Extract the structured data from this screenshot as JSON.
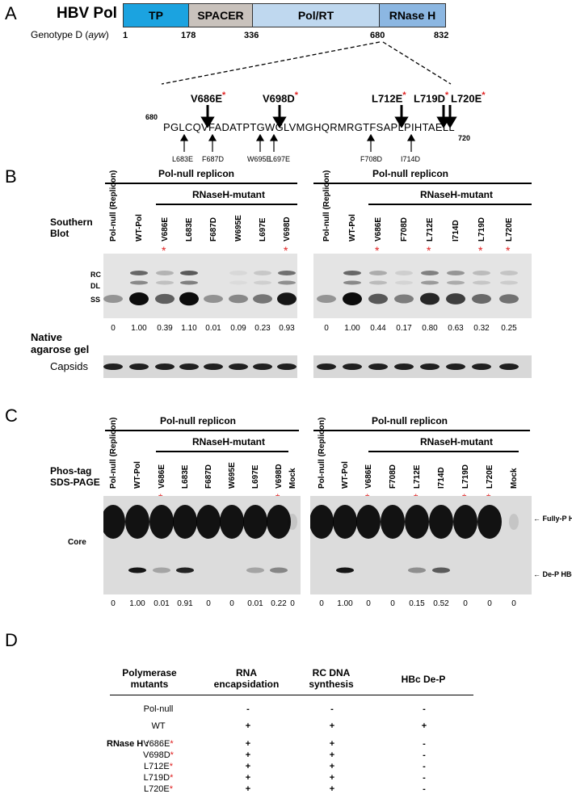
{
  "panelA": {
    "letter": "A",
    "protein": "HBV Pol",
    "domains": [
      {
        "name": "TP",
        "color": "#1ba3e0"
      },
      {
        "name": "SPACER",
        "color": "#c9c2bc"
      },
      {
        "name": "Pol/RT",
        "color": "#bfd8ef"
      },
      {
        "name": "RNase H",
        "color": "#8cb7e2"
      }
    ],
    "genotype": "Genotype D (",
    "genotype_italic": "ayw",
    "genotype_close": ")",
    "positions": [
      "1",
      "178",
      "336",
      "680",
      "832"
    ],
    "seq_start": "680",
    "seq_end": "720",
    "sequence": "PGLCQVFADATPTGWGLVMGHQRMRGTFSAPLPIHTAELL",
    "top_mutants": [
      "V686E",
      "V698D",
      "L712E",
      "L719D",
      "L720E"
    ],
    "star": "*",
    "bottom_mutants": [
      "L683E",
      "F687D",
      "W695E",
      "L697E",
      "F708D",
      "I714D"
    ]
  },
  "panelB": {
    "letter": "B",
    "header": "Pol-null replicon",
    "subheader": "RNaseH-mutant",
    "row_label_1": "Southern",
    "row_label_2": "Blot",
    "band_rc": "RC",
    "band_dl": "DL",
    "band_ss": "SS",
    "native_1": "Native",
    "native_2": "agarose gel",
    "capsids": "Capsids",
    "left_lanes": [
      "Pol-null (Replicon)",
      "WT-Pol",
      "V686E",
      "L683E",
      "F687D",
      "W695E",
      "L697E",
      "V698D"
    ],
    "left_quants": [
      "0",
      "1.00",
      "0.39",
      "1.10",
      "0.01",
      "0.09",
      "0.23",
      "0.93"
    ],
    "right_lanes": [
      "Pol-null (Replicon)",
      "WT-Pol",
      "V686E",
      "F708D",
      "L712E",
      "I714D",
      "L719D",
      "L720E"
    ],
    "right_quants": [
      "0",
      "1.00",
      "0.44",
      "0.17",
      "0.80",
      "0.63",
      "0.32",
      "0.25"
    ]
  },
  "panelC": {
    "letter": "C",
    "header": "Pol-null replicon",
    "subheader": "RNaseH-mutant",
    "row_label_1": "Phos-tag",
    "row_label_2": "SDS-PAGE",
    "core": "Core",
    "fully_p": "Fully-P HBc",
    "de_p": "De-P HBc",
    "left_lanes": [
      "Pol-null (Replicon)",
      "WT-Pol",
      "V686E",
      "L683E",
      "F687D",
      "W695E",
      "L697E",
      "V698D",
      "Mock"
    ],
    "left_quants": [
      "0",
      "1.00",
      "0.01",
      "0.91",
      "0",
      "0",
      "0.01",
      "0.22",
      "0"
    ],
    "right_lanes": [
      "Pol-null (Replicon)",
      "WT-Pol",
      "V686E",
      "F708D",
      "L712E",
      "I714D",
      "L719D",
      "L720E",
      "Mock"
    ],
    "right_quants": [
      "0",
      "1.00",
      "0",
      "0",
      "0.15",
      "0.52",
      "0",
      "0",
      "0"
    ]
  },
  "panelD": {
    "letter": "D",
    "headers": [
      "Polymerase mutants",
      "RNA encapsidation",
      "RC DNA synthesis",
      "HBc De-P"
    ],
    "rnase_label": "RNase H :",
    "rows": [
      {
        "name": "Pol-null",
        "star": false,
        "rna": "-",
        "rc": "-",
        "dep": "-"
      },
      {
        "name": "WT",
        "star": false,
        "rna": "+",
        "rc": "+",
        "dep": "+"
      },
      {
        "name": "V686E",
        "star": true,
        "rna": "+",
        "rc": "+",
        "dep": "-"
      },
      {
        "name": "V698D",
        "star": true,
        "rna": "+",
        "rc": "+",
        "dep": "-"
      },
      {
        "name": "L712E",
        "star": true,
        "rna": "+",
        "rc": "+",
        "dep": "-"
      },
      {
        "name": "L719D",
        "star": true,
        "rna": "+",
        "rc": "+",
        "dep": "-"
      },
      {
        "name": "L720E",
        "star": true,
        "rna": "+",
        "rc": "+",
        "dep": "-"
      }
    ]
  }
}
